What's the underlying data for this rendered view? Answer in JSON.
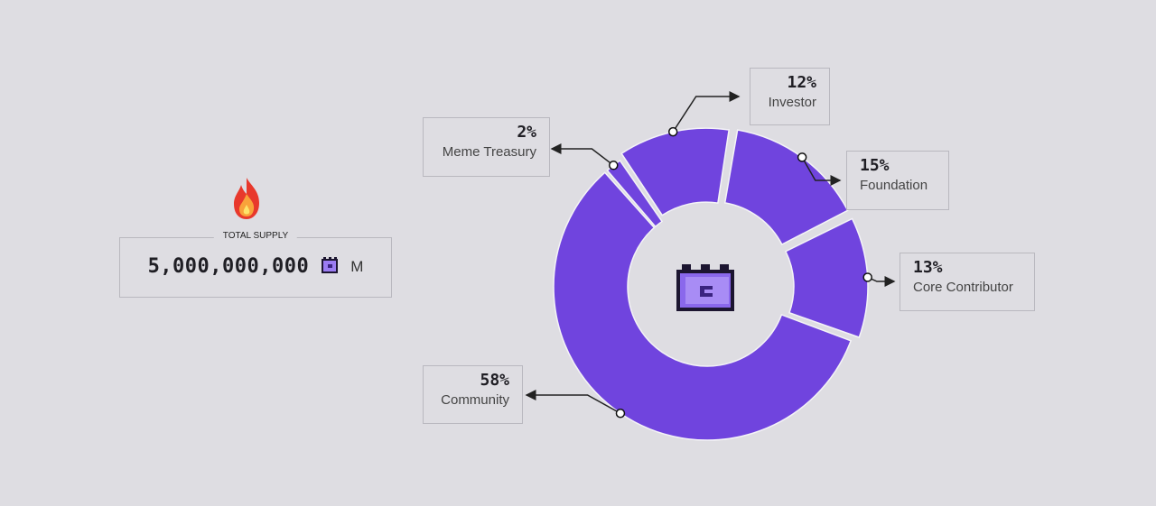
{
  "supply": {
    "title": "TOTAL SUPPLY",
    "value": "5,000,000,000",
    "unit": "M",
    "icon": "flame-icon",
    "token_icon": "castle-token-icon"
  },
  "chart_data": {
    "type": "pie",
    "variant": "donut",
    "categories": [
      "Community",
      "Meme Treasury",
      "Investor",
      "Foundation",
      "Core Contributor"
    ],
    "values": [
      58,
      2,
      12,
      15,
      13
    ],
    "labels": [
      "58%",
      "2%",
      "12%",
      "15%",
      "13%"
    ],
    "color": "#7044de",
    "center_icon": "castle-token-icon"
  }
}
